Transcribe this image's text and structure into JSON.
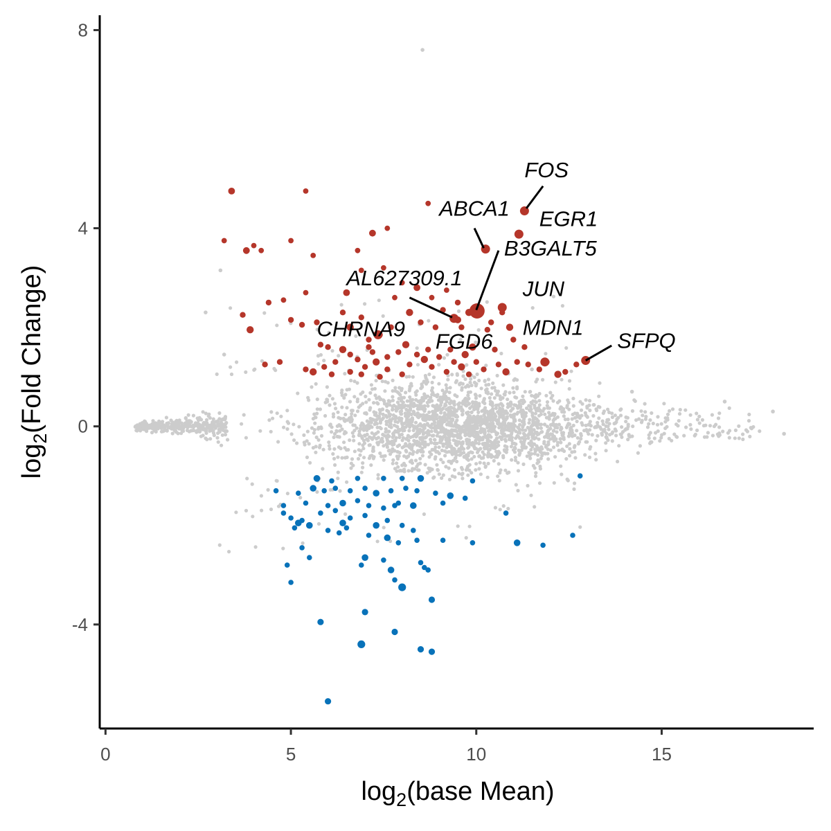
{
  "chart_data": {
    "type": "scatter",
    "title": "",
    "xlabel": {
      "prefix": "log",
      "sub": "2",
      "suffix": "(base Mean)"
    },
    "ylabel": {
      "prefix": "log",
      "sub": "2",
      "suffix": "(Fold Change)"
    },
    "xlim": [
      -0.1,
      19.1
    ],
    "ylim": [
      -6.1,
      8.3
    ],
    "x_ticks": [
      0,
      5,
      10,
      15
    ],
    "y_ticks": [
      -4,
      0,
      4,
      8
    ],
    "grid": false,
    "legend": "none",
    "colors": {
      "background": "#cccccc",
      "up": "#b5362a",
      "down": "#0872b9",
      "label_line": "#000000"
    },
    "background_cloud": {
      "description_key": "non-significant genes",
      "count": 2600,
      "x_range": [
        0.8,
        18.3
      ],
      "center_x": 9.5
    },
    "series": [
      {
        "key": "up",
        "points": [
          [
            3.4,
            4.75
          ],
          [
            5.4,
            4.75
          ],
          [
            8.7,
            4.5
          ],
          [
            3.2,
            3.75
          ],
          [
            4.0,
            3.65
          ],
          [
            3.8,
            3.55
          ],
          [
            4.2,
            3.55
          ],
          [
            5.0,
            3.75
          ],
          [
            5.6,
            3.45
          ],
          [
            6.8,
            3.55
          ],
          [
            7.2,
            3.9
          ],
          [
            7.6,
            4.0
          ],
          [
            6.9,
            3.15
          ],
          [
            7.5,
            3.2
          ],
          [
            8.0,
            2.9
          ],
          [
            8.4,
            2.8
          ],
          [
            8.8,
            2.6
          ],
          [
            9.2,
            2.75
          ],
          [
            9.5,
            2.5
          ],
          [
            7.8,
            2.6
          ],
          [
            6.5,
            2.7
          ],
          [
            5.4,
            2.7
          ],
          [
            4.8,
            2.55
          ],
          [
            4.4,
            2.5
          ],
          [
            3.7,
            2.25
          ],
          [
            3.9,
            1.95
          ],
          [
            5.0,
            2.15
          ],
          [
            5.3,
            2.05
          ],
          [
            5.7,
            2.1
          ],
          [
            6.4,
            2.3
          ],
          [
            6.6,
            2.0
          ],
          [
            6.9,
            2.2
          ],
          [
            7.4,
            1.85
          ],
          [
            7.1,
            1.6
          ],
          [
            7.7,
            2.0
          ],
          [
            8.2,
            2.3
          ],
          [
            8.5,
            2.1
          ],
          [
            8.9,
            2.0
          ],
          [
            9.1,
            2.35
          ],
          [
            9.6,
            2.0
          ],
          [
            9.8,
            2.3
          ],
          [
            10.4,
            2.1
          ],
          [
            10.7,
            2.3
          ],
          [
            10.3,
            1.95
          ],
          [
            10.5,
            1.55
          ],
          [
            10.9,
            2.0
          ],
          [
            11.0,
            1.75
          ],
          [
            11.3,
            1.6
          ],
          [
            5.8,
            1.65
          ],
          [
            6.0,
            1.6
          ],
          [
            6.4,
            1.55
          ],
          [
            6.6,
            1.45
          ],
          [
            6.8,
            1.35
          ],
          [
            6.2,
            1.3
          ],
          [
            5.9,
            1.2
          ],
          [
            5.6,
            1.1
          ],
          [
            5.4,
            1.15
          ],
          [
            6.1,
            1.05
          ],
          [
            6.6,
            1.1
          ],
          [
            7.0,
            1.2
          ],
          [
            7.3,
            1.3
          ],
          [
            7.6,
            1.4
          ],
          [
            7.9,
            1.5
          ],
          [
            8.2,
            1.25
          ],
          [
            8.4,
            1.45
          ],
          [
            8.6,
            1.35
          ],
          [
            8.8,
            1.2
          ],
          [
            9.0,
            1.4
          ],
          [
            9.2,
            1.1
          ],
          [
            9.4,
            1.3
          ],
          [
            9.6,
            1.2
          ],
          [
            9.8,
            1.05
          ],
          [
            10.0,
            1.3
          ],
          [
            10.2,
            1.15
          ],
          [
            10.6,
            1.25
          ],
          [
            10.8,
            1.1
          ],
          [
            11.1,
            1.3
          ],
          [
            11.4,
            1.25
          ],
          [
            11.7,
            1.15
          ],
          [
            11.9,
            1.3
          ],
          [
            12.2,
            1.05
          ],
          [
            12.4,
            1.1
          ],
          [
            12.7,
            1.25
          ],
          [
            7.1,
            1.75
          ],
          [
            6.9,
            1.05
          ],
          [
            8.1,
            1.65
          ],
          [
            7.6,
            1.15
          ],
          [
            7.4,
            1.0
          ],
          [
            8.0,
            1.05
          ],
          [
            9.3,
            1.55
          ],
          [
            9.9,
            1.6
          ],
          [
            4.3,
            1.25
          ],
          [
            4.7,
            1.3
          ],
          [
            7.2,
            1.5
          ],
          [
            8.7,
            1.55
          ],
          [
            9.7,
            1.45
          ]
        ]
      },
      {
        "key": "down",
        "points": [
          [
            5.7,
            -1.05
          ],
          [
            6.1,
            -1.1
          ],
          [
            6.8,
            -1.05
          ],
          [
            7.5,
            -1.05
          ],
          [
            8.0,
            -1.05
          ],
          [
            8.5,
            -1.05
          ],
          [
            9.9,
            -1.1
          ],
          [
            12.8,
            -1.0
          ],
          [
            4.6,
            -1.3
          ],
          [
            5.2,
            -1.35
          ],
          [
            5.6,
            -1.25
          ],
          [
            5.9,
            -1.3
          ],
          [
            6.2,
            -1.25
          ],
          [
            6.6,
            -1.3
          ],
          [
            7.0,
            -1.25
          ],
          [
            7.3,
            -1.35
          ],
          [
            7.7,
            -1.3
          ],
          [
            8.1,
            -1.25
          ],
          [
            8.4,
            -1.3
          ],
          [
            8.9,
            -1.35
          ],
          [
            9.3,
            -1.4
          ],
          [
            9.7,
            -1.45
          ],
          [
            4.8,
            -1.6
          ],
          [
            5.4,
            -1.55
          ],
          [
            6.0,
            -1.6
          ],
          [
            6.4,
            -1.55
          ],
          [
            6.8,
            -1.5
          ],
          [
            7.1,
            -1.6
          ],
          [
            7.5,
            -1.65
          ],
          [
            7.9,
            -1.55
          ],
          [
            8.3,
            -1.6
          ],
          [
            9.1,
            -1.55
          ],
          [
            4.8,
            -1.75
          ],
          [
            5.0,
            -1.85
          ],
          [
            5.3,
            -1.9
          ],
          [
            5.5,
            -2.0
          ],
          [
            5.8,
            -1.75
          ],
          [
            6.2,
            -1.7
          ],
          [
            6.6,
            -1.85
          ],
          [
            7.0,
            -1.8
          ],
          [
            7.3,
            -2.0
          ],
          [
            7.6,
            -1.9
          ],
          [
            8.0,
            -2.0
          ],
          [
            8.3,
            -2.1
          ],
          [
            10.8,
            -1.75
          ],
          [
            5.2,
            -1.95
          ],
          [
            6.0,
            -2.1
          ],
          [
            6.3,
            -2.15
          ],
          [
            6.5,
            -2.05
          ],
          [
            7.1,
            -2.2
          ],
          [
            7.6,
            -2.25
          ],
          [
            7.9,
            -2.35
          ],
          [
            8.4,
            -2.3
          ],
          [
            9.1,
            -2.3
          ],
          [
            9.9,
            -2.35
          ],
          [
            11.1,
            -2.35
          ],
          [
            11.8,
            -2.4
          ],
          [
            12.6,
            -2.2
          ],
          [
            5.3,
            -2.45
          ],
          [
            5.5,
            -2.65
          ],
          [
            7.0,
            -2.65
          ],
          [
            7.5,
            -2.7
          ],
          [
            8.5,
            -2.75
          ],
          [
            4.9,
            -2.8
          ],
          [
            6.9,
            -2.8
          ],
          [
            7.7,
            -2.9
          ],
          [
            8.6,
            -2.85
          ],
          [
            8.7,
            -2.9
          ],
          [
            5.0,
            -3.15
          ],
          [
            7.8,
            -3.1
          ],
          [
            8.0,
            -3.25
          ],
          [
            8.8,
            -3.5
          ],
          [
            5.8,
            -3.95
          ],
          [
            7.0,
            -3.75
          ],
          [
            7.8,
            -4.15
          ],
          [
            6.9,
            -4.4
          ],
          [
            8.5,
            -4.5
          ],
          [
            8.8,
            -4.55
          ],
          [
            6.0,
            -5.55
          ],
          [
            5.1,
            -2.05
          ],
          [
            6.4,
            -1.95
          ],
          [
            7.8,
            -1.6
          ]
        ]
      }
    ],
    "outlier_points": [
      [
        8.55,
        7.6
      ],
      [
        11.5,
        1.15
      ],
      [
        14.2,
        0.7
      ],
      [
        16.7,
        0.5
      ],
      [
        18.3,
        -0.15
      ],
      [
        18.0,
        0.3
      ],
      [
        3.1,
        3.15
      ],
      [
        2.7,
        2.3
      ],
      [
        3.2,
        1.45
      ]
    ],
    "highlighted_genes": [
      {
        "name": "FOS",
        "x": 11.3,
        "y": 4.35,
        "size": "medium",
        "group": "up"
      },
      {
        "name": "EGR1",
        "x": 11.15,
        "y": 3.88,
        "size": "medium",
        "group": "up"
      },
      {
        "name": "ABCA1",
        "x": 10.25,
        "y": 3.58,
        "size": "medium",
        "group": "up"
      },
      {
        "name": "B3GALT5",
        "x": 10.02,
        "y": 2.33,
        "size": "large",
        "group": "up"
      },
      {
        "name": "JUN",
        "x": 10.7,
        "y": 2.4,
        "size": "medium",
        "group": "up"
      },
      {
        "name": "AL627309.1",
        "x": 9.4,
        "y": 2.18,
        "size": "medium",
        "group": "up"
      },
      {
        "name": "FGD6",
        "x": 9.5,
        "y": 2.15,
        "size": "small",
        "group": "up"
      },
      {
        "name": "CHRNA9",
        "x": 7.35,
        "y": 1.85,
        "size": "medium",
        "group": "up"
      },
      {
        "name": "MDN1",
        "x": 11.85,
        "y": 1.3,
        "size": "medium",
        "group": "up"
      },
      {
        "name": "SFPQ",
        "x": 12.95,
        "y": 1.33,
        "size": "medium",
        "group": "up"
      }
    ],
    "annotations": [
      {
        "gene": "FOS",
        "text": "FOS",
        "tx": 11.3,
        "ty": 5.03,
        "anchor": "start",
        "line": [
          11.35,
          4.4,
          11.8,
          4.85
        ]
      },
      {
        "gene": "EGR1",
        "text": "EGR1",
        "tx": 11.7,
        "ty": 4.04,
        "anchor": "start",
        "line": null
      },
      {
        "gene": "ABCA1",
        "text": "ABCA1",
        "tx": 9.0,
        "ty": 4.25,
        "anchor": "start",
        "line": [
          9.95,
          4.0,
          10.2,
          3.6
        ]
      },
      {
        "gene": "B3GALT5",
        "text": "B3GALT5",
        "tx": 10.75,
        "ty": 3.45,
        "anchor": "start",
        "line": [
          10.0,
          2.35,
          10.6,
          3.55
        ]
      },
      {
        "gene": "JUN",
        "text": "JUN",
        "tx": 11.25,
        "ty": 2.63,
        "anchor": "start",
        "line": null
      },
      {
        "gene": "AL627309.1",
        "text": "AL627309.1",
        "tx": 6.5,
        "ty": 2.85,
        "anchor": "start",
        "line": [
          8.2,
          2.6,
          9.35,
          2.2
        ]
      },
      {
        "gene": "FGD6",
        "text": "FGD6",
        "tx": 8.9,
        "ty": 1.57,
        "anchor": "start",
        "line": null
      },
      {
        "gene": "CHRNA9",
        "text": "CHRNA9",
        "tx": 5.7,
        "ty": 1.82,
        "anchor": "start",
        "line": null
      },
      {
        "gene": "MDN1",
        "text": "MDN1",
        "tx": 11.25,
        "ty": 1.85,
        "anchor": "start",
        "line": null
      },
      {
        "gene": "SFPQ",
        "text": "SFPQ",
        "tx": 13.8,
        "ty": 1.58,
        "anchor": "start",
        "line": [
          12.95,
          1.33,
          13.65,
          1.63
        ]
      }
    ]
  }
}
